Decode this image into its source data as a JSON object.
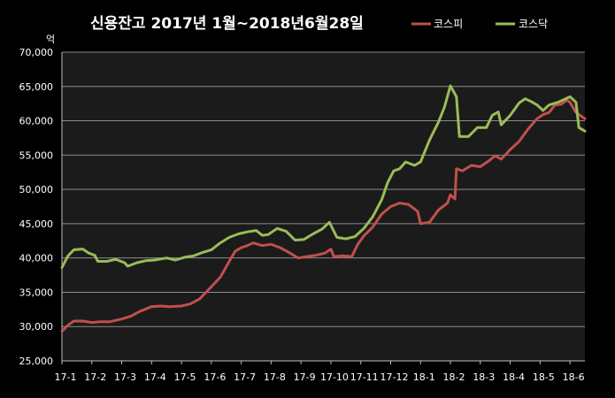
{
  "chart_data": {
    "type": "line",
    "title": "신용잔고 2017년 1월~2018년6월28일",
    "ylabel": "억",
    "ylim": [
      25000,
      70000
    ],
    "yticks": [
      "25,000",
      "30,000",
      "35,000",
      "40,000",
      "45,000",
      "50,000",
      "55,000",
      "60,000",
      "65,000",
      "70,000"
    ],
    "x_categories": [
      "17-1",
      "17-2",
      "17-3",
      "17-4",
      "17-5",
      "17-6",
      "17-7",
      "17-8",
      "17-9",
      "17-10",
      "17-11",
      "17-12",
      "18-1",
      "18-2",
      "18-3",
      "18-4",
      "18-5",
      "18-6"
    ],
    "grid": "horizontal",
    "legend_position": "top-right",
    "plot_background": "#1b1b1b",
    "series": [
      {
        "name": "코스피",
        "color": "#c0504d",
        "points": [
          [
            0,
            29300
          ],
          [
            0.2,
            30200
          ],
          [
            0.4,
            30800
          ],
          [
            0.7,
            30800
          ],
          [
            1.0,
            30600
          ],
          [
            1.3,
            30700
          ],
          [
            1.6,
            30700
          ],
          [
            2.0,
            31100
          ],
          [
            2.3,
            31500
          ],
          [
            2.6,
            32200
          ],
          [
            3.0,
            32900
          ],
          [
            3.3,
            33000
          ],
          [
            3.6,
            32900
          ],
          [
            4.0,
            33000
          ],
          [
            4.3,
            33300
          ],
          [
            4.6,
            34000
          ],
          [
            5.0,
            35800
          ],
          [
            5.3,
            37200
          ],
          [
            5.6,
            39500
          ],
          [
            5.8,
            41000
          ],
          [
            6.0,
            41500
          ],
          [
            6.2,
            41800
          ],
          [
            6.4,
            42200
          ],
          [
            6.7,
            41800
          ],
          [
            7.0,
            42000
          ],
          [
            7.3,
            41500
          ],
          [
            7.6,
            40800
          ],
          [
            7.9,
            40000
          ],
          [
            8.2,
            40200
          ],
          [
            8.5,
            40400
          ],
          [
            8.8,
            40700
          ],
          [
            9.0,
            41300
          ],
          [
            9.1,
            40200
          ],
          [
            9.4,
            40300
          ],
          [
            9.7,
            40200
          ],
          [
            9.9,
            42000
          ],
          [
            10.1,
            43200
          ],
          [
            10.4,
            44500
          ],
          [
            10.7,
            46400
          ],
          [
            11.0,
            47500
          ],
          [
            11.3,
            48000
          ],
          [
            11.6,
            47800
          ],
          [
            11.9,
            46800
          ],
          [
            12.0,
            45000
          ],
          [
            12.3,
            45200
          ],
          [
            12.6,
            47000
          ],
          [
            12.9,
            48000
          ],
          [
            13.0,
            49200
          ],
          [
            13.15,
            48600
          ],
          [
            13.2,
            53000
          ],
          [
            13.4,
            52700
          ],
          [
            13.7,
            53500
          ],
          [
            14.0,
            53300
          ],
          [
            14.3,
            54200
          ],
          [
            14.5,
            54900
          ],
          [
            14.7,
            54400
          ],
          [
            15.0,
            55800
          ],
          [
            15.3,
            57000
          ],
          [
            15.6,
            58800
          ],
          [
            15.9,
            60300
          ],
          [
            16.1,
            60900
          ],
          [
            16.3,
            61200
          ],
          [
            16.5,
            62300
          ],
          [
            16.7,
            62400
          ],
          [
            16.9,
            63000
          ],
          [
            17.0,
            62700
          ],
          [
            17.2,
            61200
          ],
          [
            17.4,
            60600
          ],
          [
            17.5,
            60300
          ]
        ]
      },
      {
        "name": "코스닥",
        "color": "#9bbb59",
        "points": [
          [
            0,
            38600
          ],
          [
            0.2,
            40300
          ],
          [
            0.4,
            41200
          ],
          [
            0.7,
            41300
          ],
          [
            0.9,
            40700
          ],
          [
            1.1,
            40400
          ],
          [
            1.2,
            39500
          ],
          [
            1.5,
            39500
          ],
          [
            1.8,
            39800
          ],
          [
            2.1,
            39300
          ],
          [
            2.2,
            38800
          ],
          [
            2.5,
            39300
          ],
          [
            2.8,
            39600
          ],
          [
            3.1,
            39700
          ],
          [
            3.5,
            40000
          ],
          [
            3.8,
            39700
          ],
          [
            4.1,
            40100
          ],
          [
            4.4,
            40300
          ],
          [
            4.7,
            40800
          ],
          [
            5.0,
            41200
          ],
          [
            5.3,
            42200
          ],
          [
            5.6,
            43000
          ],
          [
            5.9,
            43500
          ],
          [
            6.2,
            43800
          ],
          [
            6.5,
            44000
          ],
          [
            6.7,
            43300
          ],
          [
            6.9,
            43400
          ],
          [
            7.2,
            44300
          ],
          [
            7.5,
            43900
          ],
          [
            7.8,
            42600
          ],
          [
            8.1,
            42700
          ],
          [
            8.4,
            43500
          ],
          [
            8.7,
            44200
          ],
          [
            8.95,
            45200
          ],
          [
            9.2,
            43000
          ],
          [
            9.5,
            42800
          ],
          [
            9.8,
            43100
          ],
          [
            10.1,
            44300
          ],
          [
            10.4,
            46000
          ],
          [
            10.7,
            48500
          ],
          [
            10.9,
            51000
          ],
          [
            11.1,
            52700
          ],
          [
            11.3,
            53000
          ],
          [
            11.5,
            54000
          ],
          [
            11.8,
            53500
          ],
          [
            12.0,
            54000
          ],
          [
            12.3,
            57200
          ],
          [
            12.6,
            59800
          ],
          [
            12.8,
            62000
          ],
          [
            13.0,
            65100
          ],
          [
            13.2,
            63500
          ],
          [
            13.3,
            57700
          ],
          [
            13.6,
            57700
          ],
          [
            13.9,
            59000
          ],
          [
            14.2,
            59000
          ],
          [
            14.4,
            60800
          ],
          [
            14.6,
            61300
          ],
          [
            14.7,
            59400
          ],
          [
            15.0,
            60800
          ],
          [
            15.3,
            62600
          ],
          [
            15.5,
            63200
          ],
          [
            15.7,
            62800
          ],
          [
            15.9,
            62300
          ],
          [
            16.1,
            61500
          ],
          [
            16.3,
            62300
          ],
          [
            16.6,
            62700
          ],
          [
            16.8,
            63100
          ],
          [
            17.0,
            63500
          ],
          [
            17.2,
            62700
          ],
          [
            17.3,
            59000
          ],
          [
            17.5,
            58500
          ]
        ]
      }
    ]
  }
}
